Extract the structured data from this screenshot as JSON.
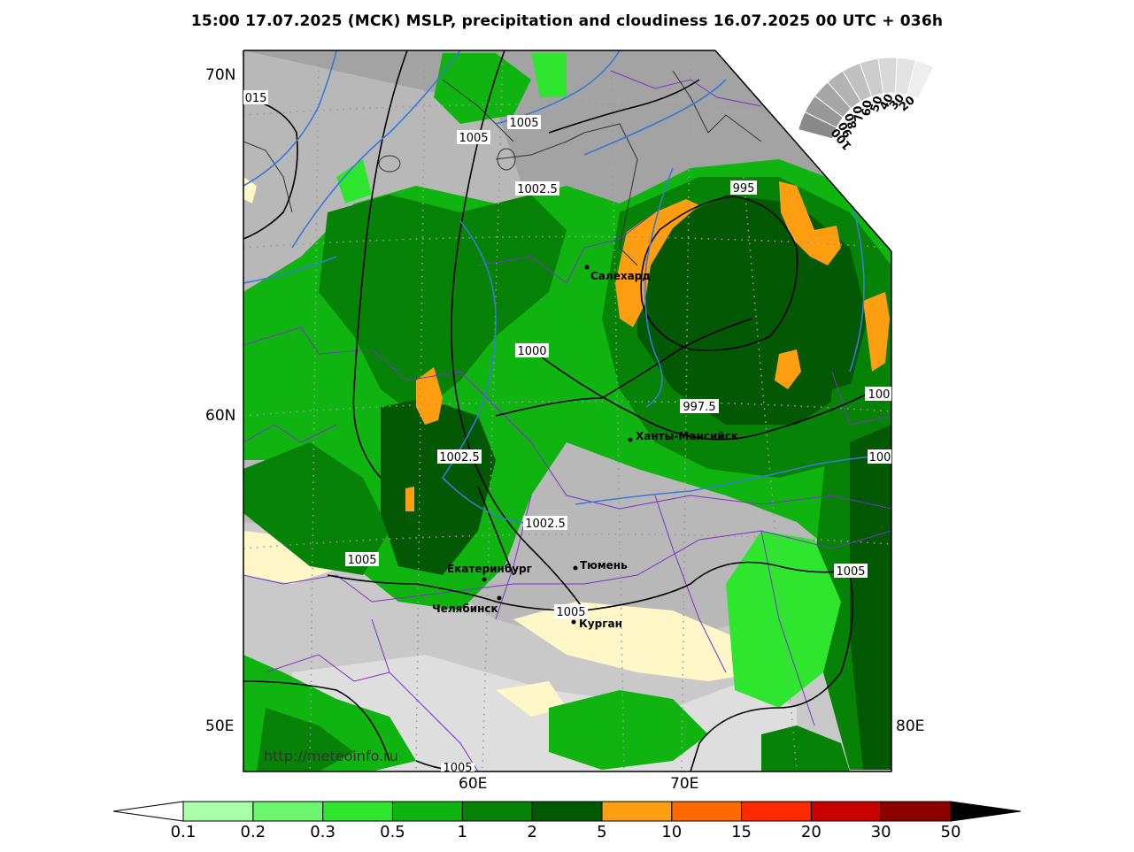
{
  "title": "15:00 17.07.2025 (МСК) MSLP, precipitation and cloudiness 16.07.2025 00 UTC + 036h",
  "axes": {
    "lat_labels": [
      "70N",
      "60N",
      "50E"
    ],
    "lon_labels": [
      "80E",
      "60E",
      "70E"
    ]
  },
  "watermark": "http://meteoinfo.ru",
  "cities": [
    {
      "name": "Салехард"
    },
    {
      "name": "Ханты-Мансийск"
    },
    {
      "name": "Тюмень"
    },
    {
      "name": "Екатеринбург"
    },
    {
      "name": "Челябинск"
    },
    {
      "name": "Курган"
    }
  ],
  "isobar_labels": [
    "015",
    "1005",
    "1005",
    "1002.5",
    "995",
    "1000",
    "997.5",
    "100",
    "1002.5",
    "100",
    "1002.5",
    "1005",
    "1005",
    "1005",
    "1005"
  ],
  "cloud_scale": {
    "labels": [
      "100",
      "90",
      "80",
      "70",
      "60",
      "50",
      "40",
      "30",
      "20"
    ],
    "colors": [
      "#8a8a8a",
      "#989898",
      "#a6a6a6",
      "#b3b3b3",
      "#c0c0c0",
      "#cccccc",
      "#d8d8d8",
      "#e3e3e3",
      "#eeeeee"
    ]
  },
  "precip_colorbar": {
    "labels": [
      "0.1",
      "0.2",
      "0.3",
      "0.5",
      "1",
      "2",
      "5",
      "10",
      "15",
      "20",
      "30",
      "50"
    ],
    "colors": [
      "#aaffaa",
      "#6ef56e",
      "#2ee62e",
      "#10b410",
      "#068206",
      "#035803",
      "#ff9e10",
      "#ff6a00",
      "#ff2a00",
      "#c80000",
      "#8c0000"
    ],
    "under_color": "#ffffff",
    "over_color": "#000000"
  }
}
